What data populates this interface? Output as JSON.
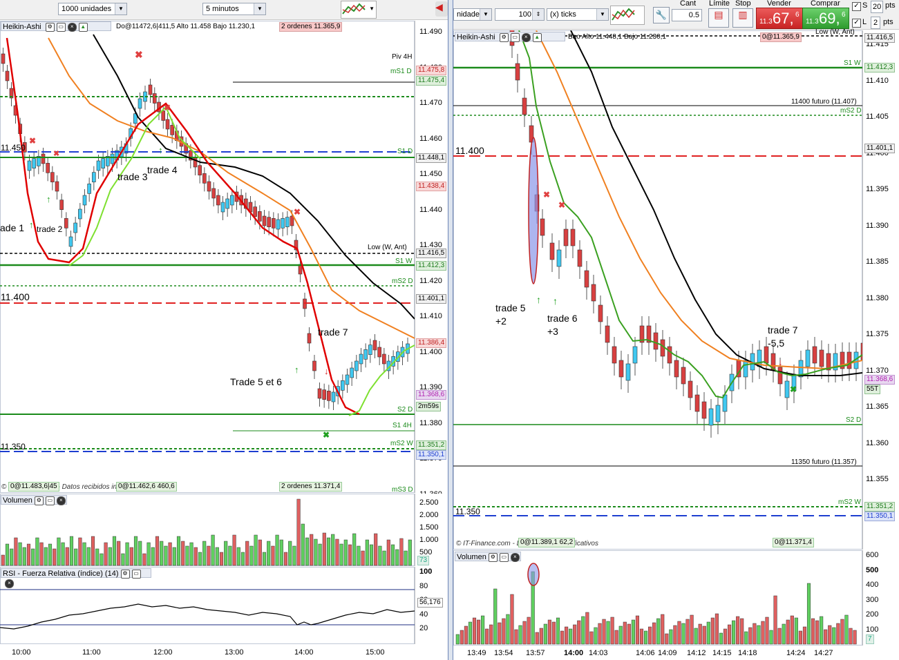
{
  "left": {
    "toolbar": {
      "quantity": "1000 unidades",
      "timeframe": "5 minutos"
    },
    "header": {
      "title": "Heikin-Ashi",
      "ohlc": "Do@11472,6|411,5 Alto 11.458 Bajo 11.230,1",
      "orders": "2 ordenes",
      "orders_price": "11.365,9"
    },
    "price_ticks": [
      "11.490",
      "11.480",
      "11.470",
      "11.460",
      "11.450",
      "11.440",
      "11.430",
      "11.420",
      "11.410",
      "11.400",
      "11.390",
      "11.380",
      "11.370",
      "11.360"
    ],
    "lines": {
      "piv4h": "Piv 4H",
      "ms1d": "mS1 D",
      "s1d": "S1 D",
      "low": "Low (W, Ant)",
      "s1w": "S1 W",
      "ms2d": "mS2 D",
      "s2d": "S2 D",
      "s14h": "S1 4H",
      "ms2w": "mS2 W",
      "ms3d": "mS3 D"
    },
    "tags": {
      "t1": "11.475,8",
      "t2": "11.475,4",
      "t3": "11.448,1",
      "t4": "11.438,4",
      "t5": "11.416,5",
      "t6": "11.412,3",
      "t7": "11.401,1",
      "t8": "11.386,4",
      "t9": "11.368,6",
      "t10": "2m59s",
      "t11": "11.351,2",
      "t12": "11.350,1"
    },
    "level_labels": {
      "l11450": "11.450",
      "l11400": "11.400",
      "l11350": "11.350"
    },
    "annotations": {
      "trade1": "ade 1",
      "trade2": "trade 2",
      "trade3": "trade 3",
      "trade4": "trade 4",
      "trade56": "Trade 5 et 6",
      "trade7": "trade 7"
    },
    "footer": {
      "credit": "© IT-Finance.com - Datos recibidos indicativos",
      "box1": "0@11.483,6|45",
      "box2": "0@11.462,6",
      "box2b": "460,6",
      "orders": "2 ordenes",
      "orders_price": "11.371,4"
    },
    "volume": {
      "title": "Volumen",
      "ticks": [
        "2.500",
        "2.000",
        "1.500",
        "1.000",
        "500"
      ],
      "tag": "73"
    },
    "rsi": {
      "title": "RSI - Fuerza Relativa (índice) (14)",
      "ticks": [
        "100",
        "80",
        "60",
        "40",
        "20"
      ],
      "value": "56,176"
    },
    "time_axis": [
      "10:00",
      "11:00",
      "12:00",
      "13:00",
      "14:00",
      "15:00"
    ]
  },
  "right": {
    "toolbar": {
      "instrument": "nidades",
      "qty": "100",
      "unit": "(x) ticks",
      "cant_label": "Cant",
      "cant_value": "0.5",
      "limite": "Límite",
      "stop": "Stop",
      "vender": "Vender",
      "comprar": "Comprar",
      "sell_small": "11.3",
      "sell_big": "67,",
      "sell_sup": "6",
      "buy_small": "11.3",
      "buy_big": "69,",
      "buy_sup": "6",
      "s_label": "S",
      "s_value": "20",
      "pts": "pts",
      "l_label": "L",
      "l_value": "2"
    },
    "header": {
      "title": "Heikin-Ashi",
      "ohlc": "Bao Alto 11.448,1 Bajo 11.230,1",
      "orders": "0@11.365,9"
    },
    "price_ticks": [
      "11.415",
      "11.410",
      "11.405",
      "11.400",
      "11.395",
      "11.390",
      "11.385",
      "11.380",
      "11.375",
      "11.370",
      "11.365",
      "11.360",
      "11.355"
    ],
    "lines": {
      "low": "Low (W, Ant)",
      "s1w": "S1 W",
      "f11400": "11400 futuro (11.407)",
      "ms2d": "mS2 D",
      "s2d": "S2 D",
      "f11350": "11350 futuro (11.357)",
      "ms2w": "mS2 W"
    },
    "tags": {
      "t1": "11.416,5",
      "t2": "11.412,3",
      "t3": "11.401,1",
      "t4": "11.368,6",
      "t5": "55T",
      "t6": "11.351,2",
      "t7": "11.350,1"
    },
    "level_labels": {
      "l11400": "11.400",
      "l11350": "11.350"
    },
    "annotations": {
      "trade5": "trade 5",
      "trade5r": "+2",
      "trade6": "trade 6",
      "trade6r": "+3",
      "trade7": "trade 7",
      "trade7r": "-5,5"
    },
    "footer": {
      "credit": "© IT-Finance.com - Datos recibidos indicativos",
      "box1": "0@11.389,1 62,2",
      "box2": "0@11.371,4"
    },
    "volume": {
      "title": "Volumen",
      "ticks": [
        "600",
        "500",
        "400",
        "300",
        "200",
        "100"
      ],
      "tag": "7"
    },
    "time_axis": [
      "13:49",
      "13:54",
      "13:57",
      "14:00",
      "14:03",
      "14:06",
      "14:09",
      "14:12",
      "14:15",
      "14:18",
      "14:24",
      "14:27"
    ]
  }
}
